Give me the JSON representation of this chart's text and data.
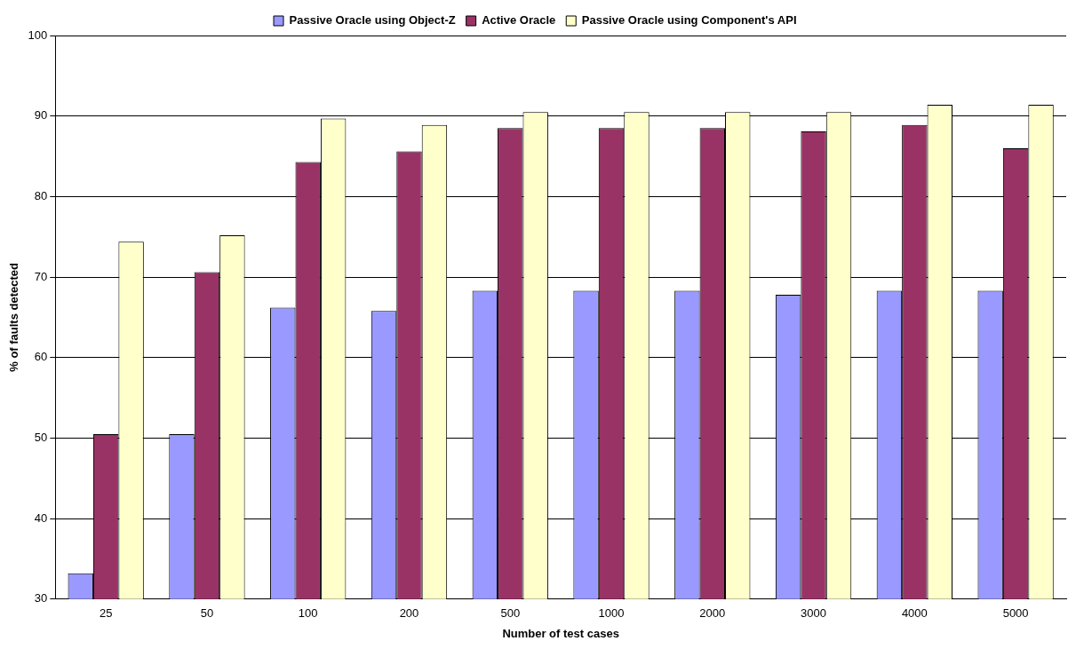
{
  "chart_data": {
    "type": "bar",
    "xlabel": "Number of test cases",
    "ylabel": "% of faults detected",
    "categories": [
      "25",
      "50",
      "100",
      "200",
      "500",
      "1000",
      "2000",
      "3000",
      "4000",
      "5000"
    ],
    "series": [
      {
        "name": "Passive Oracle using Object-Z",
        "color": "#9999ff",
        "values": [
          33.2,
          50.5,
          66.2,
          65.8,
          68.3,
          68.3,
          68.3,
          67.8,
          68.3,
          68.3
        ]
      },
      {
        "name": "Active Oracle",
        "color": "#993366",
        "values": [
          50.5,
          70.6,
          84.3,
          85.6,
          88.5,
          88.5,
          88.5,
          88.1,
          88.9,
          86.0
        ]
      },
      {
        "name": "Passive Oracle using Component's API",
        "color": "#ffffcc",
        "values": [
          74.4,
          75.2,
          89.7,
          88.9,
          90.5,
          90.5,
          90.5,
          90.5,
          91.4,
          91.4
        ]
      }
    ],
    "ylim": [
      30,
      100
    ],
    "yticks": [
      30,
      40,
      50,
      60,
      70,
      80,
      90,
      100
    ],
    "grid": "y",
    "legend": "top"
  }
}
